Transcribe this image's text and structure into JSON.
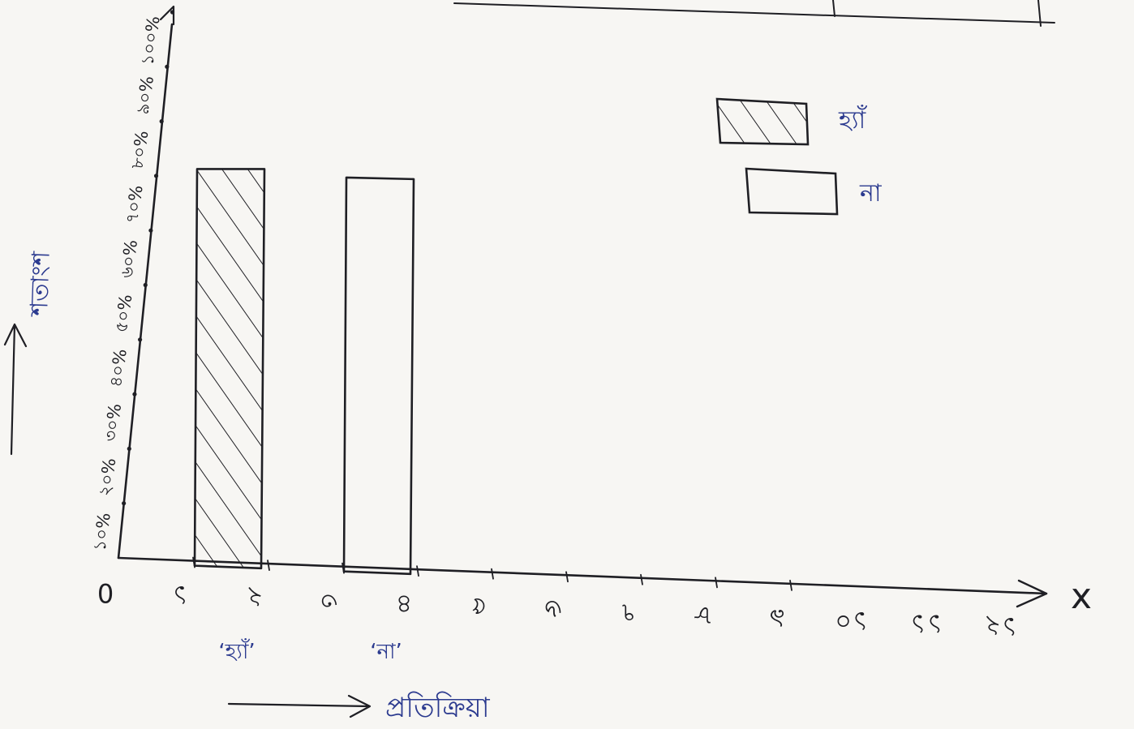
{
  "chart_data": {
    "type": "bar",
    "categories": [
      "হ্যাঁ",
      "না"
    ],
    "values": [
      72,
      70
    ],
    "xlabel": "প্রতিক্রিয়া",
    "ylabel": "শতাংশ",
    "x_axis_symbol": "x",
    "x_ticks": [
      "0",
      "১",
      "২",
      "৩",
      "৪",
      "৫",
      "৬",
      "৭",
      "৮",
      "৯",
      "১০",
      "১১",
      "১২"
    ],
    "y_ticks": [
      "১০%",
      "২০%",
      "৩০%",
      "৪০%",
      "৫০%",
      "৬০%",
      "৭০%",
      "৮০%",
      "৯০%",
      "১০০%"
    ],
    "ylim": [
      0,
      100
    ],
    "bar_x_ranges": [
      [
        1,
        2
      ],
      [
        3,
        4
      ]
    ],
    "legend": [
      {
        "label": "হ্যাঁ",
        "pattern": "hatched"
      },
      {
        "label": "না",
        "pattern": "empty"
      }
    ],
    "legend_position": "top-right",
    "grid": false,
    "colors": {
      "ink": "#1f1f24",
      "label_ink": "#2b3a8f",
      "paper": "#f7f6f3"
    }
  }
}
